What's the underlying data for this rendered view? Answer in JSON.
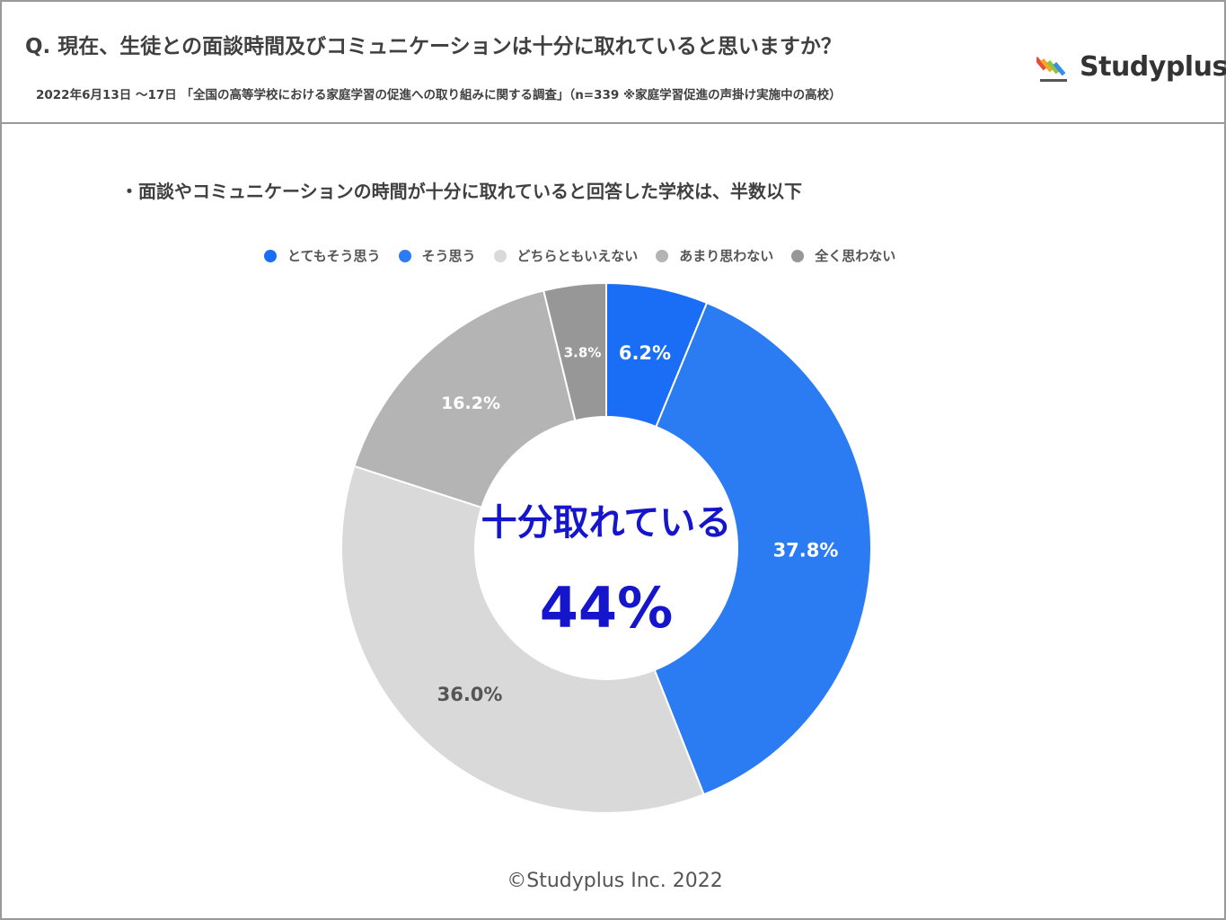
{
  "header": {
    "question": "Q. 現在、生徒との面談時間及びコミュニケーションは十分に取れていると思いますか？",
    "survey": "2022年6月13日 〜17日 「全国の高等学校における家庭学習の促進への取り組みに関する調査」（n=339 ※家庭学習促進の声掛け実施中の高校）",
    "logo_text": "Studyplus"
  },
  "subtitle": "・面談やコミュニケーションの時間が十分に取れていると回答した学校は、半数以下",
  "center": {
    "line1": "十分取れている",
    "line2": "44%"
  },
  "footer": "©Studyplus Inc. 2022",
  "chart_data": {
    "type": "pie",
    "donut": true,
    "legend_position": "top",
    "categories": [
      "とてもそう思う",
      "そう思う",
      "どちらともいえない",
      "あまり思わない",
      "全く思わない"
    ],
    "values": [
      6.2,
      37.8,
      36.0,
      16.2,
      3.8
    ],
    "labels": [
      "6.2%",
      "37.8%",
      "36.0%",
      "16.2%",
      "3.8%"
    ],
    "colors": [
      "#1a6ef5",
      "#2b7bf3",
      "#d9d9d9",
      "#b4b4b4",
      "#979797"
    ],
    "label_colors": [
      "#ffffff",
      "#ffffff",
      "#555555",
      "#ffffff",
      "#ffffff"
    ]
  }
}
